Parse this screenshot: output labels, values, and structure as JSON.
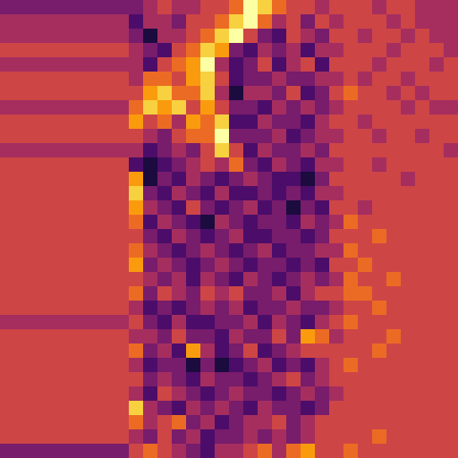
{
  "chart_data": {
    "type": "heatmap",
    "tick_labels": false,
    "zlim": [
      0,
      9
    ],
    "cells": [
      [
        3,
        3,
        3,
        3,
        3,
        3,
        3,
        3,
        3,
        3,
        4,
        5,
        4,
        4,
        5,
        5,
        6,
        9,
        8,
        6,
        5,
        5,
        4,
        5,
        5,
        5,
        4,
        5,
        5,
        4,
        4,
        4
      ],
      [
        4,
        4,
        4,
        4,
        4,
        4,
        4,
        4,
        4,
        2,
        4,
        4,
        3,
        5,
        5,
        6,
        8,
        9,
        6,
        4,
        5,
        3,
        5,
        4,
        5,
        5,
        5,
        4,
        5,
        4,
        4,
        4
      ],
      [
        4,
        4,
        4,
        4,
        4,
        4,
        4,
        4,
        4,
        3,
        1,
        4,
        4,
        5,
        6,
        8,
        9,
        5,
        3,
        2,
        5,
        4,
        3,
        5,
        5,
        4,
        5,
        5,
        4,
        5,
        4,
        4
      ],
      [
        5,
        5,
        5,
        5,
        5,
        5,
        5,
        5,
        5,
        4,
        3,
        2,
        5,
        6,
        8,
        7,
        3,
        2,
        4,
        3,
        4,
        2,
        4,
        4,
        5,
        5,
        5,
        4,
        5,
        5,
        5,
        4
      ],
      [
        4,
        4,
        4,
        4,
        4,
        4,
        4,
        4,
        4,
        4,
        2,
        5,
        6,
        7,
        9,
        4,
        2,
        3,
        5,
        2,
        4,
        5,
        2,
        5,
        5,
        5,
        4,
        5,
        5,
        5,
        4,
        5
      ],
      [
        5,
        5,
        5,
        5,
        5,
        5,
        5,
        5,
        5,
        4,
        6,
        6,
        5,
        7,
        8,
        5,
        2,
        3,
        3,
        4,
        3,
        3,
        4,
        4,
        5,
        4,
        5,
        5,
        4,
        5,
        5,
        5
      ],
      [
        5,
        5,
        5,
        5,
        5,
        5,
        5,
        5,
        5,
        5,
        7,
        8,
        6,
        6,
        8,
        4,
        1,
        4,
        4,
        3,
        5,
        2,
        3,
        5,
        6,
        5,
        5,
        4,
        5,
        4,
        5,
        5
      ],
      [
        4,
        4,
        4,
        4,
        4,
        4,
        4,
        4,
        4,
        6,
        8,
        7,
        8,
        5,
        7,
        5,
        3,
        3,
        2,
        4,
        3,
        4,
        3,
        4,
        5,
        5,
        5,
        5,
        4,
        5,
        4,
        4
      ],
      [
        5,
        5,
        5,
        5,
        5,
        5,
        5,
        5,
        5,
        7,
        5,
        6,
        4,
        7,
        6,
        8,
        2,
        2,
        4,
        3,
        3,
        2,
        4,
        5,
        5,
        4,
        5,
        5,
        5,
        5,
        5,
        5
      ],
      [
        5,
        5,
        5,
        5,
        5,
        5,
        5,
        5,
        5,
        5,
        4,
        3,
        5,
        6,
        6,
        9,
        3,
        3,
        3,
        4,
        2,
        3,
        4,
        4,
        5,
        5,
        4,
        5,
        5,
        4,
        5,
        5
      ],
      [
        4,
        4,
        4,
        4,
        4,
        4,
        4,
        4,
        4,
        4,
        2,
        3,
        4,
        3,
        5,
        8,
        5,
        2,
        4,
        3,
        3,
        4,
        3,
        5,
        5,
        5,
        5,
        5,
        5,
        5,
        5,
        4
      ],
      [
        5,
        5,
        5,
        5,
        5,
        5,
        5,
        5,
        5,
        2,
        1,
        2,
        3,
        4,
        5,
        4,
        6,
        3,
        2,
        4,
        3,
        2,
        4,
        4,
        5,
        5,
        4,
        5,
        5,
        5,
        5,
        5
      ],
      [
        5,
        5,
        5,
        5,
        5,
        5,
        5,
        5,
        5,
        7,
        1,
        3,
        2,
        4,
        3,
        2,
        3,
        4,
        3,
        2,
        2,
        1,
        3,
        5,
        5,
        5,
        5,
        5,
        4,
        5,
        5,
        5
      ],
      [
        5,
        5,
        5,
        5,
        5,
        5,
        5,
        5,
        5,
        8,
        3,
        2,
        4,
        3,
        2,
        4,
        2,
        2,
        3,
        2,
        3,
        2,
        4,
        4,
        5,
        5,
        5,
        5,
        5,
        5,
        5,
        5
      ],
      [
        5,
        5,
        5,
        5,
        5,
        5,
        5,
        5,
        5,
        7,
        4,
        3,
        2,
        5,
        3,
        2,
        3,
        4,
        2,
        3,
        1,
        3,
        2,
        5,
        5,
        4,
        5,
        5,
        5,
        5,
        5,
        5
      ],
      [
        5,
        5,
        5,
        5,
        5,
        5,
        5,
        5,
        5,
        6,
        2,
        4,
        3,
        2,
        1,
        4,
        3,
        2,
        3,
        3,
        2,
        4,
        3,
        4,
        6,
        5,
        5,
        5,
        5,
        5,
        5,
        5
      ],
      [
        5,
        5,
        5,
        5,
        5,
        5,
        5,
        5,
        5,
        5,
        3,
        2,
        4,
        3,
        2,
        3,
        4,
        2,
        2,
        3,
        3,
        2,
        3,
        5,
        5,
        5,
        6,
        5,
        5,
        5,
        5,
        5
      ],
      [
        5,
        5,
        5,
        5,
        5,
        5,
        5,
        5,
        5,
        6,
        4,
        3,
        2,
        3,
        4,
        3,
        2,
        3,
        4,
        2,
        3,
        3,
        4,
        4,
        6,
        5,
        5,
        5,
        5,
        5,
        5,
        5
      ],
      [
        5,
        5,
        5,
        5,
        5,
        5,
        5,
        5,
        5,
        7,
        3,
        4,
        3,
        2,
        3,
        4,
        3,
        2,
        3,
        3,
        2,
        3,
        2,
        5,
        5,
        6,
        5,
        5,
        5,
        5,
        5,
        5
      ],
      [
        5,
        5,
        5,
        5,
        5,
        5,
        5,
        5,
        5,
        5,
        4,
        3,
        4,
        2,
        4,
        3,
        2,
        4,
        3,
        2,
        3,
        4,
        3,
        4,
        6,
        5,
        5,
        6,
        5,
        5,
        5,
        5
      ],
      [
        5,
        5,
        5,
        5,
        5,
        5,
        5,
        5,
        5,
        6,
        3,
        5,
        4,
        3,
        5,
        4,
        5,
        3,
        3,
        4,
        2,
        4,
        5,
        5,
        6,
        6,
        5,
        5,
        5,
        5,
        5,
        5
      ],
      [
        5,
        5,
        5,
        5,
        5,
        5,
        5,
        5,
        5,
        4,
        2,
        3,
        2,
        3,
        4,
        3,
        4,
        2,
        3,
        3,
        4,
        3,
        3,
        4,
        5,
        5,
        6,
        5,
        5,
        5,
        5,
        5
      ],
      [
        4,
        4,
        4,
        4,
        4,
        4,
        4,
        4,
        4,
        5,
        3,
        2,
        4,
        2,
        2,
        3,
        3,
        4,
        2,
        4,
        3,
        2,
        4,
        5,
        6,
        5,
        5,
        5,
        5,
        5,
        5,
        5
      ],
      [
        5,
        5,
        5,
        5,
        5,
        5,
        5,
        5,
        5,
        4,
        4,
        3,
        5,
        3,
        3,
        2,
        4,
        3,
        3,
        5,
        3,
        7,
        6,
        4,
        5,
        5,
        5,
        6,
        5,
        5,
        5,
        5
      ],
      [
        5,
        5,
        5,
        5,
        5,
        5,
        5,
        5,
        5,
        6,
        3,
        4,
        2,
        7,
        4,
        2,
        3,
        5,
        2,
        3,
        4,
        5,
        5,
        5,
        5,
        5,
        6,
        5,
        5,
        5,
        5,
        5
      ],
      [
        5,
        5,
        5,
        5,
        5,
        5,
        5,
        5,
        5,
        4,
        2,
        3,
        3,
        1,
        3,
        1,
        2,
        3,
        4,
        2,
        3,
        2,
        4,
        5,
        6,
        5,
        5,
        5,
        5,
        5,
        5,
        5
      ],
      [
        5,
        5,
        5,
        5,
        5,
        5,
        5,
        5,
        5,
        5,
        3,
        4,
        3,
        2,
        4,
        3,
        3,
        2,
        3,
        4,
        5,
        3,
        4,
        5,
        5,
        5,
        5,
        5,
        5,
        5,
        5,
        5
      ],
      [
        5,
        5,
        5,
        5,
        5,
        5,
        5,
        5,
        5,
        4,
        2,
        5,
        4,
        3,
        2,
        3,
        4,
        3,
        3,
        2,
        3,
        4,
        3,
        4,
        5,
        5,
        5,
        5,
        5,
        5,
        5,
        5
      ],
      [
        5,
        5,
        5,
        5,
        5,
        5,
        5,
        5,
        5,
        8,
        4,
        3,
        2,
        4,
        3,
        4,
        3,
        2,
        4,
        3,
        3,
        2,
        3,
        5,
        5,
        5,
        5,
        5,
        5,
        5,
        5,
        5
      ],
      [
        5,
        5,
        5,
        5,
        5,
        5,
        5,
        5,
        5,
        6,
        4,
        5,
        6,
        3,
        4,
        2,
        3,
        4,
        4,
        5,
        3,
        4,
        5,
        5,
        5,
        5,
        5,
        5,
        5,
        5,
        5,
        5
      ],
      [
        5,
        5,
        5,
        5,
        5,
        5,
        5,
        5,
        5,
        4,
        3,
        5,
        3,
        4,
        2,
        3,
        3,
        4,
        3,
        4,
        3,
        4,
        5,
        5,
        5,
        5,
        6,
        5,
        5,
        5,
        5,
        5
      ],
      [
        3,
        3,
        3,
        3,
        3,
        3,
        3,
        3,
        3,
        5,
        6,
        5,
        4,
        3,
        2,
        4,
        4,
        5,
        6,
        4,
        6,
        7,
        5,
        5,
        6,
        5,
        5,
        5,
        5,
        5,
        5,
        5
      ]
    ]
  }
}
